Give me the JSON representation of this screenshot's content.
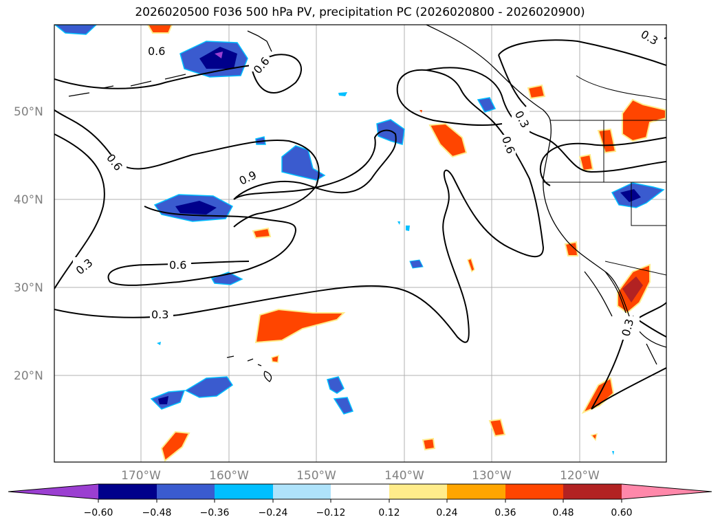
{
  "title": "2026020500 F036 500 hPa PV, precipitation PC (2026020800 - 2026020900)",
  "lat_labels": [
    "50°N",
    "40°N",
    "30°N",
    "20°N"
  ],
  "lon_labels": [
    "170°W",
    "160°W",
    "150°W",
    "140°W",
    "130°W",
    "120°W"
  ],
  "contour_labels": [
    "0.6",
    "0.6",
    "0.6",
    "0.9",
    "0.6",
    "0.3",
    "0.3",
    "0.3",
    "0.6",
    "0.3",
    "0.3"
  ],
  "colorbar": {
    "ticks": [
      "−0.60",
      "−0.48",
      "−0.36",
      "−0.24",
      "−0.12",
      "0.12",
      "0.24",
      "0.36",
      "0.48",
      "0.60"
    ],
    "colors": [
      "#9b3fd1",
      "#00008b",
      "#3a5bcf",
      "#00bfff",
      "#afe3fb",
      "#ffffff",
      "#ffec8b",
      "#ffa500",
      "#ff4500",
      "#b22222",
      "#ff88aa"
    ]
  }
}
